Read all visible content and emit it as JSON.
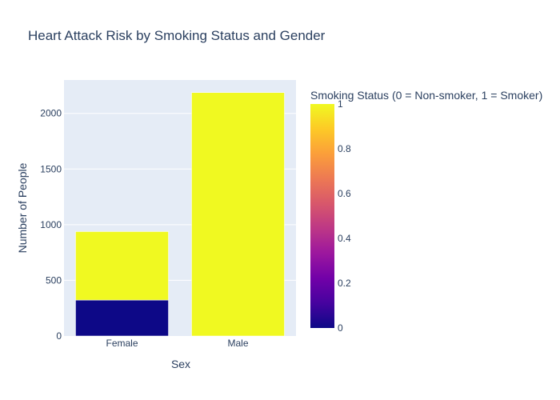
{
  "chart_data": {
    "type": "bar",
    "barmode": "stack",
    "title": "Heart Attack Risk by Smoking Status and Gender",
    "xlabel": "Sex",
    "ylabel": "Number of People",
    "categories": [
      "Female",
      "Male"
    ],
    "ylim": [
      0,
      2300
    ],
    "yticks": [
      0,
      500,
      1000,
      1500,
      2000
    ],
    "grid": true,
    "series": [
      {
        "smoking": 0,
        "values": [
          323,
          0
        ],
        "color": "#0d0887"
      },
      {
        "smoking": 1,
        "values": [
          615,
          2187
        ],
        "color": "#f0f921"
      }
    ],
    "colorbar": {
      "title": "Smoking Status (0 = Non-smoker, 1 = Smoker)",
      "range": [
        0,
        1
      ],
      "ticks": [
        0,
        0.2,
        0.4,
        0.6,
        0.8,
        1
      ],
      "colorscale": [
        "#0d0887",
        "#46039f",
        "#7201a8",
        "#9c179e",
        "#bd3786",
        "#d8576b",
        "#ed7953",
        "#fb9f3a",
        "#fdca26",
        "#f0f921"
      ]
    },
    "colors": {
      "plot_bg": "#e5ecf6",
      "grid": "#ffffff",
      "text": "#2a3f5f"
    }
  }
}
